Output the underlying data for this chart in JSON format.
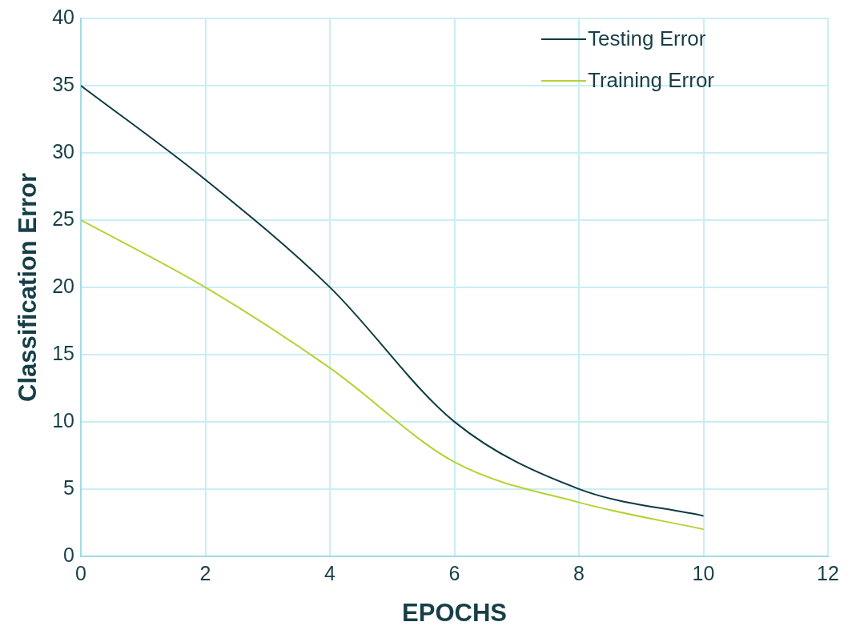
{
  "chart_data": {
    "type": "line",
    "xlabel": "EPOCHS",
    "ylabel": "Classification Error",
    "x": [
      0,
      2,
      4,
      6,
      8,
      10
    ],
    "series": [
      {
        "name": "Testing Error",
        "color": "#0e3b43",
        "values": [
          35,
          28,
          20,
          10,
          5,
          3
        ]
      },
      {
        "name": "Training Error",
        "color": "#b5d334",
        "values": [
          25,
          20,
          14,
          7,
          4,
          2
        ]
      }
    ],
    "xlim": [
      0,
      12
    ],
    "xticks": [
      0,
      2,
      4,
      6,
      8,
      10,
      12
    ],
    "ylim": [
      0,
      40
    ],
    "yticks": [
      0,
      5,
      10,
      15,
      20,
      25,
      30,
      35,
      40
    ],
    "grid": true,
    "legend": "top right",
    "marker": "none",
    "line_style": "solid"
  }
}
